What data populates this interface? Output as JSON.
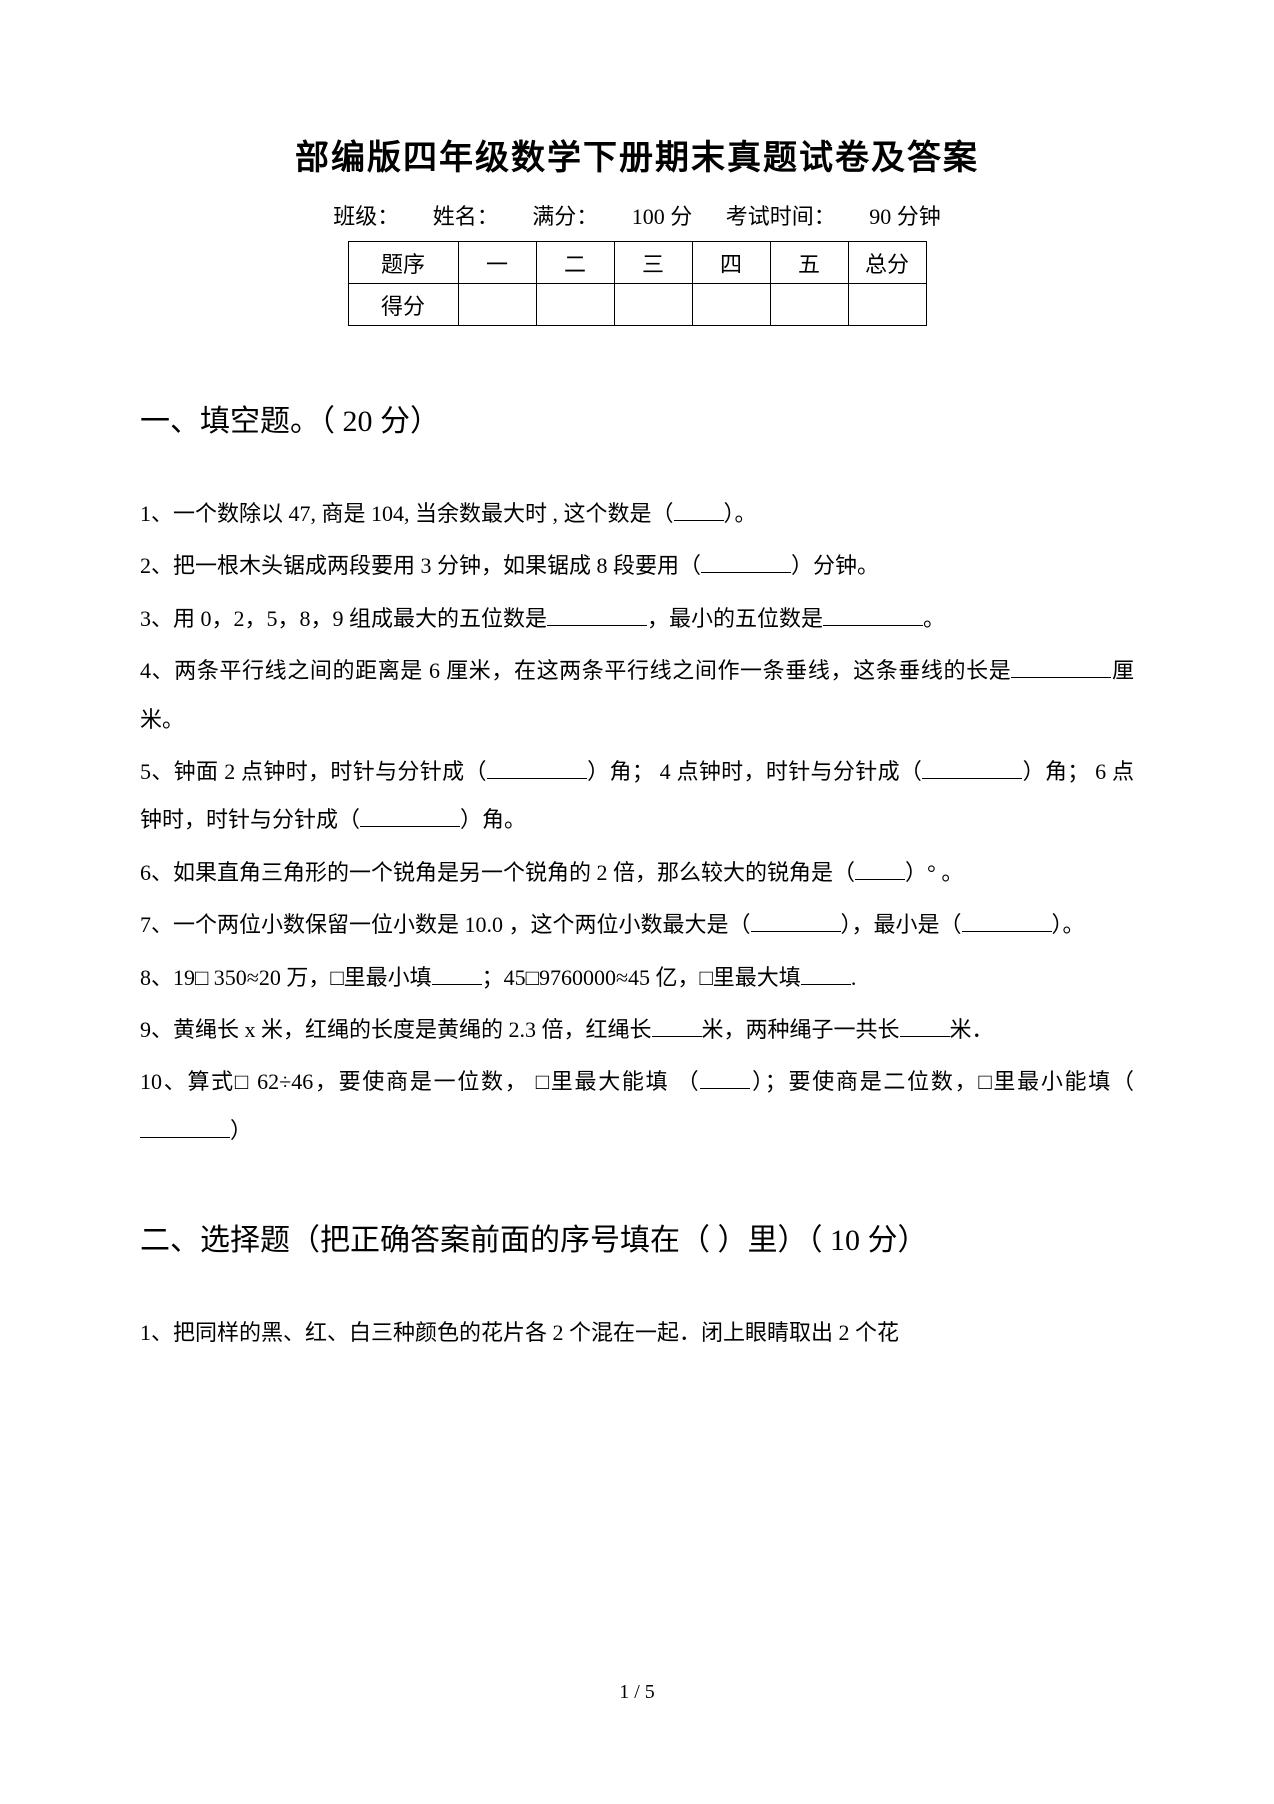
{
  "title": "部编版四年级数学下册期末真题试卷及答案",
  "meta": {
    "class_label": "班级：",
    "name_label": "姓名：",
    "full_label": "满分：",
    "full_value": "100 分",
    "time_label": "考试时间：",
    "time_value": "90 分钟"
  },
  "score_table": {
    "row1": [
      "题序",
      "一",
      "二",
      "三",
      "四",
      "五",
      "总分"
    ],
    "row2_label": "得分"
  },
  "section1": {
    "heading": "一、填空题。（  20 分）",
    "q1_a": "1、一个数除以  47, 商是 104, 当余数最大时 , 这个数是（",
    "q1_b": "）。",
    "q2_a": "2、把一根木头锯成两段要用    3 分钟，如果锯成  8 段要用（",
    "q2_b": "）分钟。",
    "q3_a": "3、用 0，2，5，8，9 组成最大的五位数是",
    "q3_b": "，最小的五位数是",
    "q3_c": "。",
    "q4": "4、两条平行线之间的距离是    6 厘米，在这两条平行线之间作一条垂线，这条垂线的长是",
    "q4_b": "厘米。",
    "q5_a": "5、钟面 2 点钟时，时针与分针成（",
    "q5_b": "）角；  4 点钟时，时针与分针成（",
    "q5_c": "）角；  6 点钟时，时针与分针成（",
    "q5_d": "）角。",
    "q6_a": "6、如果直角三角形的一个锐角是另一个锐角的     2 倍，那么较大的锐角是（",
    "q6_b": "）°  。",
    "q7_a": "7、一个两位小数保留一位小数是    10.0 ，这个两位小数最大是（",
    "q7_b": "），最小是（",
    "q7_c": "）。",
    "q8_a": "8、19□ 350≈20 万，□里最小填",
    "q8_b": "；45□9760000≈45 亿，□里最大填",
    "q8_c": ".",
    "q9_a": "9、黄绳长 x 米，红绳的长度是黄绳的    2.3 倍，红绳长",
    "q9_b": "米，两种绳子一共长",
    "q9_c": "米．",
    "q10_a": "10、算式□ 62÷46，要使商是一位数， □里最大能填 （",
    "q10_b": "）；要使商是二位数，□里最小能填（",
    "q10_c": "）"
  },
  "section2": {
    "heading": "二、选择题（把正确答案前面的序号填在（        ）里）（ 10 分）",
    "q1": "1、把同样的黑、红、白三种颜色的花片各     2 个混在一起．闭上眼睛取出    2 个花"
  },
  "page_num": "1 / 5"
}
